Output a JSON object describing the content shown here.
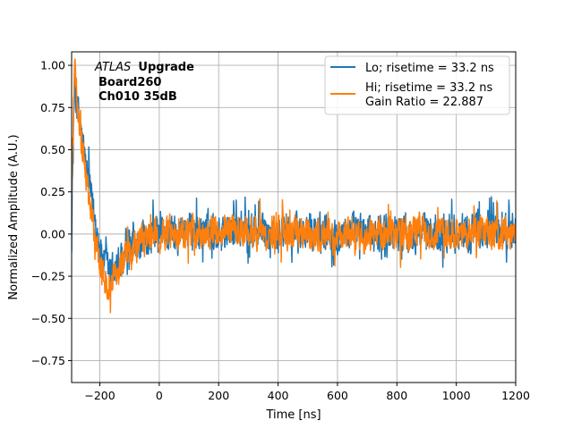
{
  "chart_data": {
    "type": "line",
    "title": "",
    "xlabel": "Time [ns]",
    "ylabel": "Normalized Amplitude (A.U.)",
    "xlim": [
      -295,
      1200
    ],
    "ylim": [
      -0.88,
      1.08
    ],
    "xticks": [
      -200,
      0,
      200,
      400,
      600,
      800,
      1000,
      1200
    ],
    "xtick_labels": [
      "−200",
      "0",
      "200",
      "400",
      "600",
      "800",
      "1000",
      "1200"
    ],
    "yticks": [
      -0.75,
      -0.5,
      -0.25,
      0.0,
      0.25,
      0.5,
      0.75,
      1.0
    ],
    "ytick_labels": [
      "−0.75",
      "−0.50",
      "−0.25",
      "0.00",
      "0.25",
      "0.50",
      "0.75",
      "1.00"
    ],
    "grid": true,
    "legend_location": "top-right",
    "annotation": {
      "experiment": "ATLAS",
      "experiment_suffix": "Upgrade",
      "board": "Board260",
      "channel": "Ch010 35dB"
    },
    "series": [
      {
        "name": "Lo; risetime = 33.2 ns",
        "color": "#1f77b4",
        "x": [
          -295,
          -285,
          -275,
          -265,
          -255,
          -245,
          -235,
          -225,
          -215,
          -205,
          -195,
          -180,
          -160,
          -140,
          -120,
          -100,
          -80,
          -60,
          -40,
          -20,
          0,
          50,
          100,
          150,
          200,
          300,
          400,
          500,
          600,
          700,
          800,
          900,
          1000,
          1100,
          1200
        ],
        "envelope": [
          0.1,
          0.9,
          0.75,
          0.62,
          0.5,
          0.38,
          0.27,
          0.17,
          0.07,
          -0.03,
          -0.12,
          -0.2,
          -0.22,
          -0.19,
          -0.15,
          -0.11,
          -0.08,
          -0.05,
          -0.03,
          -0.01,
          0.0,
          0.01,
          0.02,
          0.02,
          0.02,
          0.02,
          0.01,
          0.01,
          0.01,
          0.01,
          0.01,
          0.01,
          0.02,
          0.02,
          0.02
        ],
        "noise_amplitude": 0.15
      },
      {
        "name": "Hi; risetime = 33.2 ns\n Gain Ratio = 22.887",
        "color": "#ff7f0e",
        "x": [
          -295,
          -285,
          -275,
          -265,
          -255,
          -245,
          -235,
          -225,
          -215,
          -205,
          -195,
          -180,
          -160,
          -140,
          -120,
          -100,
          -80,
          -60,
          -40,
          -20,
          0,
          50,
          100,
          150,
          200,
          300,
          400,
          500,
          600,
          700,
          800,
          900,
          1000,
          1100,
          1200
        ],
        "envelope": [
          0.3,
          0.95,
          0.78,
          0.63,
          0.48,
          0.33,
          0.2,
          0.08,
          -0.03,
          -0.13,
          -0.22,
          -0.28,
          -0.28,
          -0.23,
          -0.17,
          -0.12,
          -0.08,
          -0.05,
          -0.03,
          -0.01,
          0.0,
          0.01,
          0.01,
          0.01,
          0.01,
          0.01,
          0.01,
          0.0,
          0.0,
          0.01,
          0.01,
          0.01,
          0.01,
          0.01,
          0.01
        ],
        "noise_amplitude": 0.13
      }
    ]
  }
}
